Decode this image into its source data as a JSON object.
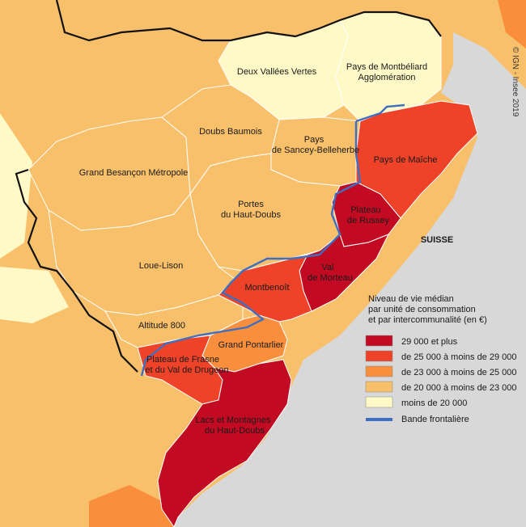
{
  "colors": {
    "c29plus": "#c20a23",
    "c25_29": "#ee4328",
    "c23_25": "#f98f3d",
    "c20_23": "#f8c06a",
    "cbelow20": "#fff9c8",
    "neighbor": "#f8c06a",
    "switzerland": "#d8d8d8",
    "border_line": "#3f6fc1",
    "dept_outline": "#111111"
  },
  "labels": {
    "deux_vallees": "Deux Vallées Vertes",
    "montbeliard_1": "Pays de Montbéliard",
    "montbeliard_2": "Agglomération",
    "doubs_baumois": "Doubs Baumois",
    "sancey_1": "Pays",
    "sancey_2": "de Sancey-Belleherbe",
    "grand_besancon": "Grand Besançon Métropole",
    "maiche": "Pays de Maîche",
    "russey_1": "Plateau",
    "russey_2": "de Russey",
    "portes_1": "Portes",
    "portes_2": "du Haut-Doubs",
    "loue_lison": "Loue-Lison",
    "morteau_1": "Val",
    "morteau_2": "de Morteau",
    "montbenoit": "Montbenoît",
    "altitude": "Altitude 800",
    "pontarlier": "Grand Pontarlier",
    "frasne_1": "Plateau de Frasne",
    "frasne_2": "et du Val de Drugeon",
    "lacs_1": "Lacs et Montagnes",
    "lacs_2": "du Haut-Doubs",
    "suisse": "SUISSE"
  },
  "credit": "© IGN - Insee 2019",
  "legend": {
    "title_lines": [
      "Niveau de vie médian",
      "par unité de consommation",
      "et par intercommunalité (en €)"
    ],
    "classes": [
      {
        "label": "29 000 et plus",
        "color": "#c20a23"
      },
      {
        "label": "de 25 000 à moins de 29 000",
        "color": "#ee4328"
      },
      {
        "label": "de 23 000 à moins de 25 000",
        "color": "#f98f3d"
      },
      {
        "label": "de 20 000 à moins de 23 000",
        "color": "#f8c06a"
      },
      {
        "label": "moins de 20 000",
        "color": "#fff9c8"
      }
    ],
    "border_label": "Bande frontalière"
  }
}
